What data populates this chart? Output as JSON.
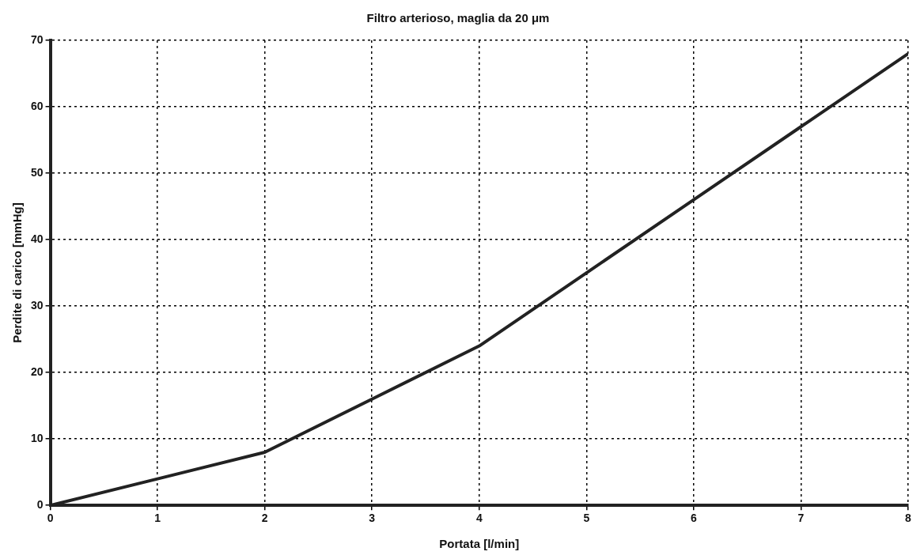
{
  "chart_data": {
    "type": "line",
    "title": "Filtro arterioso, maglia da 20 μm",
    "xlabel": "Portata [l/min]",
    "ylabel": "Perdite di carico [mmHg]",
    "x": [
      0,
      1,
      2,
      3,
      4,
      5,
      6,
      7,
      8
    ],
    "series": [
      {
        "color": "#222222",
        "values": [
          0,
          4,
          8,
          16,
          24,
          35,
          46,
          57,
          68
        ]
      }
    ],
    "xlim": [
      0,
      8
    ],
    "xticks": [
      0,
      1,
      2,
      3,
      4,
      5,
      6,
      7,
      8
    ],
    "ylim": [
      0,
      70
    ],
    "yticks": [
      0,
      10,
      20,
      30,
      40,
      50,
      60,
      70
    ],
    "grid": true,
    "legend": false,
    "marker": "none",
    "line_style": "solid"
  }
}
